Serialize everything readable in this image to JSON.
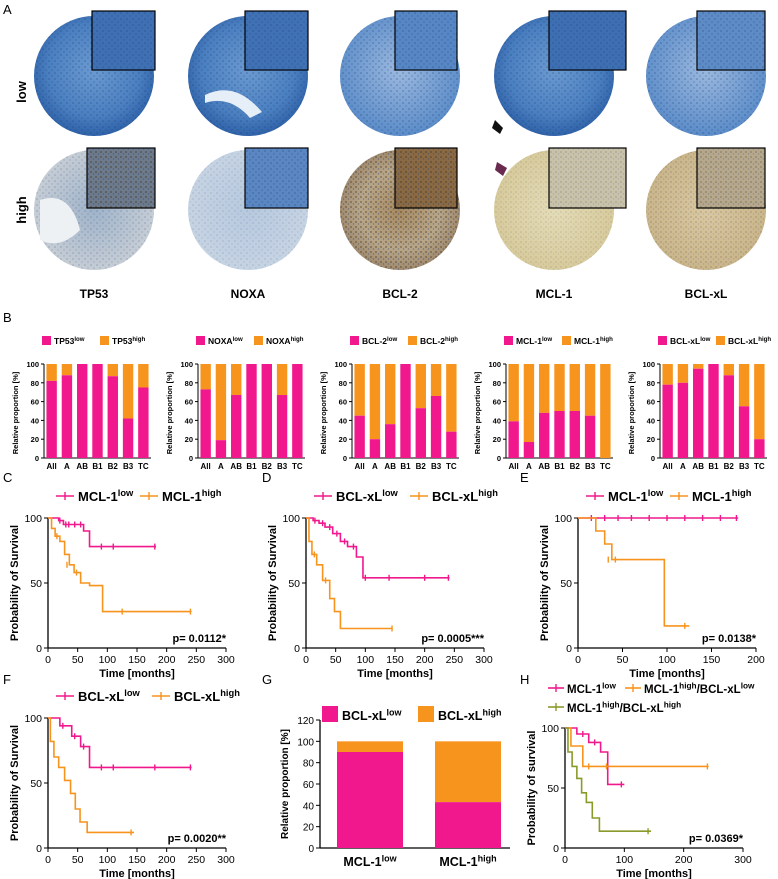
{
  "panel_letters": {
    "A": "A",
    "B": "B",
    "C": "C",
    "D": "D",
    "E": "E",
    "F": "F",
    "G": "G",
    "H": "H"
  },
  "panel_a": {
    "row_labels": [
      "low",
      "high"
    ],
    "markers": [
      "TP53",
      "NOXA",
      "BCL-2",
      "MCL-1",
      "BCL-xL"
    ]
  },
  "colors": {
    "pink": "#f0188c",
    "orange": "#f7941d",
    "olive": "#8a9a2a",
    "tissue_low": "#4f83c2",
    "tissue_high": "#cdbf92"
  },
  "common": {
    "relative_proportion": "Relative proportion [%]",
    "prob_survival": "Probability of Survival",
    "prob_survival_lc": "Probability of survival",
    "time_months": "Time [months]",
    "sup_low": "low",
    "sup_high": "high"
  },
  "chart_data": [
    {
      "id": "B1",
      "type": "bar",
      "stacked": true,
      "legend": [
        {
          "base": "TP53",
          "sup": "low"
        },
        {
          "base": "TP53",
          "sup": "high"
        }
      ],
      "categories": [
        "All",
        "A",
        "AB",
        "B1",
        "B2",
        "B3",
        "TC"
      ],
      "values_low": [
        82,
        88,
        100,
        100,
        87,
        42,
        75
      ],
      "ylabel": "Relative proportion [%]",
      "ylim": [
        0,
        100
      ],
      "yticks": [
        0,
        20,
        40,
        60,
        80,
        100
      ]
    },
    {
      "id": "B2",
      "type": "bar",
      "stacked": true,
      "legend": [
        {
          "base": "NOXA",
          "sup": "low"
        },
        {
          "base": "NOXA",
          "sup": "high"
        }
      ],
      "categories": [
        "All",
        "A",
        "AB",
        "B1",
        "B2",
        "B3",
        "TC"
      ],
      "values_low": [
        73,
        19,
        67,
        100,
        100,
        67,
        100
      ],
      "ylabel": "Relative proportion [%]",
      "ylim": [
        0,
        100
      ],
      "yticks": [
        0,
        20,
        40,
        60,
        80,
        100
      ]
    },
    {
      "id": "B3",
      "type": "bar",
      "stacked": true,
      "legend": [
        {
          "base": "BCL-2",
          "sup": "low"
        },
        {
          "base": "BCL-2",
          "sup": "high"
        }
      ],
      "categories": [
        "All",
        "A",
        "AB",
        "B1",
        "B2",
        "B3",
        "TC"
      ],
      "values_low": [
        45,
        20,
        36,
        100,
        53,
        66,
        28
      ],
      "ylabel": "Relative proportion [%]",
      "ylim": [
        0,
        100
      ],
      "yticks": [
        0,
        20,
        40,
        60,
        80,
        100
      ]
    },
    {
      "id": "B4",
      "type": "bar",
      "stacked": true,
      "legend": [
        {
          "base": "MCL-1",
          "sup": "low"
        },
        {
          "base": "MCL-1",
          "sup": "high"
        }
      ],
      "categories": [
        "All",
        "A",
        "AB",
        "B1",
        "B2",
        "B3",
        "TC"
      ],
      "values_low": [
        39,
        17,
        48,
        50,
        50,
        45,
        0
      ],
      "ylabel": "Relative proportion [%]",
      "ylim": [
        0,
        100
      ],
      "yticks": [
        0,
        20,
        40,
        60,
        80,
        100
      ]
    },
    {
      "id": "B5",
      "type": "bar",
      "stacked": true,
      "legend": [
        {
          "base": "BCL-xL",
          "sup": "low"
        },
        {
          "base": "BCL-xL",
          "sup": "high"
        }
      ],
      "categories": [
        "All",
        "A",
        "AB",
        "B1",
        "B2",
        "B3",
        "TC"
      ],
      "values_low": [
        78,
        80,
        95,
        100,
        88,
        55,
        20
      ],
      "ylabel": "Relative proportion [%]",
      "ylim": [
        0,
        100
      ],
      "yticks": [
        0,
        20,
        40,
        60,
        80,
        100
      ]
    },
    {
      "id": "C",
      "type": "line",
      "subtype": "kaplan-meier",
      "ylabel": "Probability of Survival",
      "xlabel": "Time [months]",
      "xlim": [
        0,
        300
      ],
      "ylim": [
        0,
        100
      ],
      "xticks": [
        0,
        50,
        100,
        150,
        200,
        250,
        300
      ],
      "yticks": [
        0,
        50,
        100
      ],
      "pvalue": "p= 0.0112*",
      "series": [
        {
          "name_base": "MCL-1",
          "name_sup": "low",
          "color": "#f0188c",
          "x": [
            0,
            10,
            18,
            26,
            40,
            60,
            70,
            182
          ],
          "y": [
            100,
            100,
            98,
            95,
            95,
            90,
            78,
            78
          ],
          "censor_x": [
            20,
            30,
            35,
            45,
            55,
            90,
            110,
            180
          ],
          "censor_y": [
            98,
            95,
            95,
            95,
            95,
            78,
            78,
            78
          ]
        },
        {
          "name_base": "MCL-1",
          "name_sup": "high",
          "color": "#f7941d",
          "x": [
            0,
            6,
            12,
            20,
            28,
            36,
            44,
            55,
            70,
            92,
            242
          ],
          "y": [
            100,
            92,
            86,
            82,
            72,
            64,
            58,
            50,
            48,
            28,
            28
          ],
          "censor_x": [
            15,
            32,
            48,
            125,
            240
          ],
          "censor_y": [
            86,
            64,
            58,
            28,
            28
          ]
        }
      ]
    },
    {
      "id": "D",
      "type": "line",
      "subtype": "kaplan-meier",
      "ylabel": "Probability of Survival",
      "xlabel": "Time [months]",
      "xlim": [
        0,
        300
      ],
      "ylim": [
        0,
        100
      ],
      "xticks": [
        0,
        50,
        100,
        150,
        200,
        250,
        300
      ],
      "yticks": [
        0,
        50,
        100
      ],
      "pvalue": "p= 0.0005***",
      "series": [
        {
          "name_base": "BCL-xL",
          "name_sup": "low",
          "color": "#f0188c",
          "x": [
            0,
            12,
            22,
            32,
            45,
            58,
            70,
            85,
            96,
            242
          ],
          "y": [
            100,
            98,
            96,
            93,
            88,
            82,
            78,
            70,
            54,
            54
          ],
          "censor_x": [
            15,
            28,
            40,
            52,
            65,
            80,
            100,
            140,
            200,
            240
          ],
          "censor_y": [
            98,
            96,
            93,
            88,
            82,
            78,
            54,
            54,
            54,
            54
          ],
          "note": "KM step"
        },
        {
          "name_base": "BCL-xL",
          "name_sup": "high",
          "color": "#f7941d",
          "x": [
            0,
            5,
            10,
            18,
            28,
            40,
            48,
            58,
            146
          ],
          "y": [
            100,
            82,
            72,
            64,
            52,
            38,
            28,
            15,
            15
          ],
          "censor_x": [
            14,
            33,
            145
          ],
          "censor_y": [
            72,
            52,
            15
          ]
        }
      ]
    },
    {
      "id": "E",
      "type": "line",
      "subtype": "kaplan-meier",
      "ylabel": "Probability of Survival",
      "xlabel": "Time [months]",
      "xlim": [
        0,
        200
      ],
      "ylim": [
        0,
        100
      ],
      "xticks": [
        0,
        50,
        100,
        150,
        200
      ],
      "yticks": [
        0,
        50,
        100
      ],
      "pvalue": "p= 0.0138*",
      "series": [
        {
          "name_base": "MCL-1",
          "name_sup": "low",
          "color": "#f0188c",
          "x": [
            0,
            180
          ],
          "y": [
            100,
            100
          ],
          "censor_x": [
            15,
            30,
            45,
            60,
            80,
            100,
            120,
            140,
            160,
            178
          ],
          "censor_y": [
            100,
            100,
            100,
            100,
            100,
            100,
            100,
            100,
            100,
            100
          ]
        },
        {
          "name_base": "MCL-1",
          "name_sup": "high",
          "color": "#f7941d",
          "x": [
            0,
            20,
            30,
            38,
            92,
            97,
            125
          ],
          "y": [
            100,
            90,
            80,
            68,
            68,
            17,
            17
          ],
          "censor_x": [
            34,
            42,
            120
          ],
          "censor_y": [
            68,
            68,
            17
          ]
        }
      ]
    },
    {
      "id": "F",
      "type": "line",
      "subtype": "kaplan-meier",
      "ylabel": "Probability of Survival",
      "xlabel": "Time [months]",
      "xlim": [
        0,
        300
      ],
      "ylim": [
        0,
        100
      ],
      "xticks": [
        0,
        50,
        100,
        150,
        200,
        250,
        300
      ],
      "yticks": [
        0,
        50,
        100
      ],
      "pvalue": "p= 0.0020**",
      "series": [
        {
          "name_base": "BCL-xL",
          "name_sup": "low",
          "color": "#f0188c",
          "x": [
            0,
            20,
            40,
            55,
            70,
            242
          ],
          "y": [
            100,
            94,
            86,
            78,
            62,
            62
          ],
          "censor_x": [
            25,
            45,
            60,
            90,
            110,
            180,
            240
          ],
          "censor_y": [
            94,
            86,
            78,
            62,
            62,
            62,
            62
          ]
        },
        {
          "name_base": "BCL-xL",
          "name_sup": "high",
          "color": "#f7941d",
          "x": [
            0,
            4,
            10,
            18,
            28,
            38,
            46,
            54,
            66,
            145
          ],
          "y": [
            100,
            82,
            70,
            62,
            52,
            42,
            30,
            20,
            12,
            12
          ],
          "censor_x": [
            140
          ],
          "censor_y": [
            12
          ]
        }
      ]
    },
    {
      "id": "G",
      "type": "bar",
      "stacked": true,
      "ylabel": "Relative proportion [%]",
      "ylim": [
        0,
        120
      ],
      "yticks": [
        0,
        20,
        40,
        60,
        80,
        100,
        120
      ],
      "legend": [
        {
          "base": "BCL-xL",
          "sup": "low"
        },
        {
          "base": "BCL-xL",
          "sup": "high"
        }
      ],
      "categories": [
        {
          "base": "MCL-1",
          "sup": "low"
        },
        {
          "base": "MCL-1",
          "sup": "high"
        }
      ],
      "values_low": [
        90,
        43
      ]
    },
    {
      "id": "H",
      "type": "line",
      "subtype": "kaplan-meier",
      "ylabel": "Probability of survival",
      "xlabel": "Time [months]",
      "xlim": [
        0,
        300
      ],
      "ylim": [
        0,
        100
      ],
      "xticks": [
        0,
        100,
        200,
        300
      ],
      "yticks": [
        0,
        50,
        100
      ],
      "pvalue": "p= 0.0369*",
      "legend_parts": [
        {
          "base": "MCL-1",
          "sup": "low"
        },
        {
          "base": "MCL-1",
          "sup": "high",
          "tail": "/BCL-xL",
          "tail_sup": "low"
        },
        {
          "base": "MCL-1",
          "sup": "high",
          "tail": "/BCL-xL",
          "tail_sup": "high"
        }
      ],
      "series": [
        {
          "name": "MCL-1 low",
          "color": "#f0188c",
          "x": [
            0,
            20,
            40,
            60,
            72,
            100
          ],
          "y": [
            100,
            95,
            88,
            80,
            53,
            53
          ],
          "censor_x": [
            30,
            50,
            95
          ],
          "censor_y": [
            95,
            88,
            53
          ]
        },
        {
          "name": "MCL-1 high/BCL-xL low",
          "color": "#f7941d",
          "x": [
            0,
            10,
            30,
            242
          ],
          "y": [
            100,
            85,
            68,
            68
          ],
          "censor_x": [
            40,
            70,
            240
          ],
          "censor_y": [
            68,
            68,
            68
          ]
        },
        {
          "name": "MCL-1 high/BCL-xL high",
          "color": "#8a9a2a",
          "x": [
            0,
            5,
            12,
            20,
            28,
            36,
            46,
            58,
            145
          ],
          "y": [
            100,
            80,
            68,
            58,
            46,
            38,
            25,
            14,
            14
          ],
          "censor_x": [
            140
          ],
          "censor_y": [
            14
          ]
        }
      ]
    }
  ]
}
